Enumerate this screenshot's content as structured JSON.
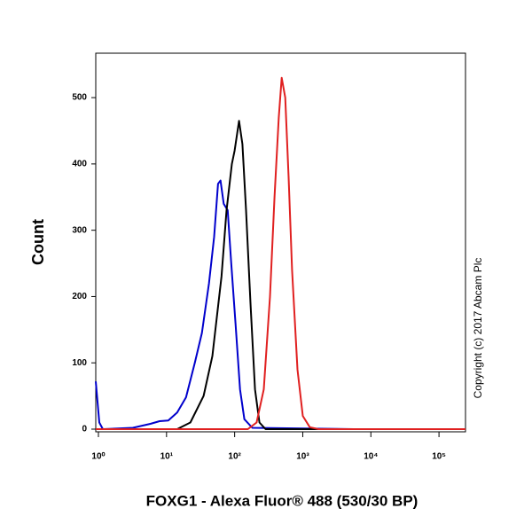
{
  "chart_data": {
    "type": "line",
    "x_label": "FOXG1 - Alexa Fluor® 488 (530/30 BP)",
    "y_label": "Count",
    "annotation": "Copyright (c) 2017 Abcam Plc",
    "xscale": "log",
    "xlim": [
      0.914,
      245000
    ],
    "xticks": [
      {
        "value": 1,
        "label": "10⁰"
      },
      {
        "value": 10,
        "label": "10¹"
      },
      {
        "value": 100,
        "label": "10²"
      },
      {
        "value": 1000,
        "label": "10³"
      },
      {
        "value": 10000,
        "label": "10⁴"
      },
      {
        "value": 100000,
        "label": "10⁵"
      }
    ],
    "ylim": [
      -4,
      567
    ],
    "yticks": [
      0,
      100,
      200,
      300,
      400,
      500
    ],
    "series": [
      {
        "color": "#0000cc",
        "x": [
          0.914,
          1.03,
          1.16,
          3.2,
          5.8,
          7.9,
          10.6,
          14.3,
          19.3,
          26,
          33,
          42,
          50,
          57,
          62,
          69,
          79,
          89,
          103,
          120,
          139,
          182,
          5600,
          245000
        ],
        "values": [
          72,
          10,
          0,
          2,
          8,
          12,
          13,
          25,
          48,
          100,
          145,
          220,
          290,
          370,
          375,
          340,
          330,
          250,
          160,
          60,
          15,
          2,
          0,
          0
        ]
      },
      {
        "color": "#000000",
        "x": [
          0.914,
          14.3,
          22.4,
          35,
          47,
          64,
          76,
          91,
          100,
          116,
          130,
          147,
          171,
          199,
          231,
          284,
          245000
        ],
        "values": [
          0,
          0,
          10,
          50,
          110,
          230,
          330,
          400,
          420,
          465,
          430,
          330,
          190,
          60,
          10,
          0,
          0
        ]
      },
      {
        "color": "#e02020",
        "x": [
          0.914,
          156,
          210,
          268,
          330,
          385,
          445,
          490,
          553,
          619,
          697,
          836,
          1000,
          1270,
          1700,
          245000
        ],
        "values": [
          0,
          0,
          10,
          60,
          200,
          350,
          470,
          530,
          500,
          380,
          240,
          90,
          20,
          3,
          0,
          0
        ]
      }
    ]
  }
}
